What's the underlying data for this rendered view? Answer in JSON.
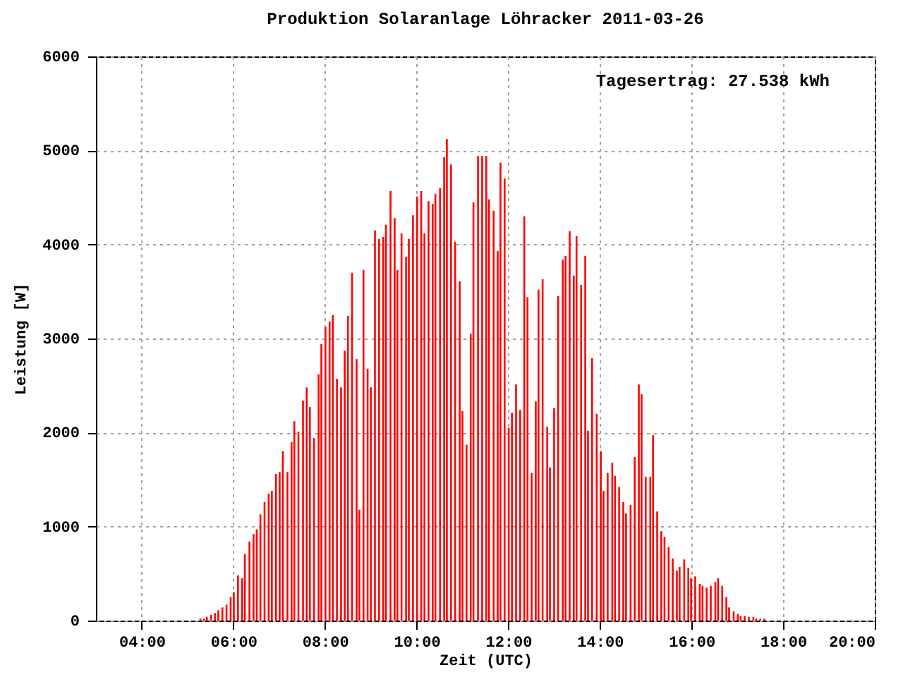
{
  "chart_data": {
    "type": "bar",
    "title": "Produktion Solaranlage Löhracker 2011-03-26",
    "xlabel": "Zeit (UTC)",
    "ylabel": "Leistung [W]",
    "annotations": [
      "Tagesertrag: 27.538 kWh"
    ],
    "x": [
      5.28,
      5.36,
      5.42,
      5.51,
      5.6,
      5.67,
      5.76,
      5.85,
      5.94,
      6.01,
      6.1,
      6.19,
      6.25,
      6.35,
      6.44,
      6.51,
      6.59,
      6.68,
      6.77,
      6.84,
      6.93,
      7.01,
      7.08,
      7.18,
      7.27,
      7.33,
      7.42,
      7.52,
      7.6,
      7.67,
      7.76,
      7.86,
      7.92,
      8.01,
      8.1,
      8.17,
      8.26,
      8.35,
      8.43,
      8.5,
      8.59,
      8.69,
      8.75,
      8.84,
      8.93,
      9,
      9.09,
      9.18,
      9.27,
      9.33,
      9.43,
      9.52,
      9.58,
      9.67,
      9.77,
      9.83,
      9.92,
      10.01,
      10.1,
      10.17,
      10.26,
      10.35,
      10.41,
      10.51,
      10.6,
      10.66,
      10.75,
      10.84,
      10.94,
      11,
      11.09,
      11.18,
      11.24,
      11.34,
      11.43,
      11.52,
      11.58,
      11.68,
      11.77,
      11.83,
      11.92,
      12.01,
      12.08,
      12.17,
      12.26,
      12.35,
      12.42,
      12.51,
      12.6,
      12.66,
      12.75,
      12.85,
      12.91,
      13,
      13.09,
      13.19,
      13.25,
      13.34,
      13.43,
      13.49,
      13.59,
      13.68,
      13.74,
      13.83,
      13.93,
      14.02,
      14.08,
      14.17,
      14.27,
      14.33,
      14.42,
      14.51,
      14.57,
      14.67,
      14.76,
      14.85,
      14.91,
      15,
      15.1,
      15.16,
      15.25,
      15.34,
      15.41,
      15.5,
      15.59,
      15.68,
      15.74,
      15.84,
      15.93,
      15.99,
      16.08,
      16.18,
      16.24,
      16.33,
      16.42,
      16.52,
      16.58,
      16.67,
      16.76,
      16.82,
      16.92,
      17.01,
      17.07,
      17.16,
      17.25,
      17.35,
      17.41,
      17.5,
      17.59
    ],
    "series": [
      {
        "color": "#ff0000",
        "values": [
          20,
          20,
          40,
          60,
          80,
          110,
          140,
          170,
          250,
          300,
          480,
          450,
          710,
          840,
          920,
          970,
          1130,
          1260,
          1350,
          1380,
          1560,
          1580,
          1800,
          1580,
          1900,
          2120,
          2010,
          2340,
          2480,
          2270,
          1940,
          2620,
          2940,
          3120,
          3180,
          3250,
          2570,
          2480,
          2870,
          3240,
          3700,
          2780,
          1180,
          3730,
          2680,
          2480,
          4150,
          4060,
          4080,
          4210,
          4570,
          4280,
          3730,
          4120,
          3870,
          4060,
          4310,
          4510,
          4570,
          4120,
          4460,
          4430,
          4540,
          4600,
          4930,
          5120,
          4850,
          4030,
          3610,
          2230,
          1870,
          3050,
          4450,
          4940,
          4940,
          4940,
          4480,
          4360,
          3930,
          4870,
          4700,
          2050,
          2210,
          2510,
          2240,
          4300,
          3440,
          1570,
          2330,
          3520,
          3630,
          2060,
          1630,
          2260,
          3450,
          3840,
          3880,
          4140,
          3670,
          4090,
          3570,
          3880,
          2020,
          2790,
          2200,
          1800,
          1380,
          1570,
          1680,
          1540,
          1420,
          1260,
          1140,
          1230,
          1740,
          2510,
          2410,
          1530,
          1530,
          1970,
          1160,
          950,
          890,
          780,
          660,
          530,
          570,
          650,
          560,
          450,
          470,
          390,
          370,
          350,
          370,
          410,
          450,
          370,
          250,
          140,
          100,
          70,
          50,
          50,
          40,
          40,
          20,
          20,
          20
        ]
      }
    ],
    "xlim": [
      3,
      20
    ],
    "xticks": [
      {
        "value": 4,
        "label": "04:00"
      },
      {
        "value": 6,
        "label": "06:00"
      },
      {
        "value": 8,
        "label": "08:00"
      },
      {
        "value": 10,
        "label": "10:00"
      },
      {
        "value": 12,
        "label": "12:00"
      },
      {
        "value": 14,
        "label": "14:00"
      },
      {
        "value": 16,
        "label": "16:00"
      },
      {
        "value": 18,
        "label": "18:00"
      },
      {
        "value": 20,
        "label": "20:00"
      }
    ],
    "ylim": [
      0,
      6000
    ],
    "yticks": [
      0,
      1000,
      2000,
      3000,
      4000,
      5000,
      6000
    ],
    "grid": true
  }
}
